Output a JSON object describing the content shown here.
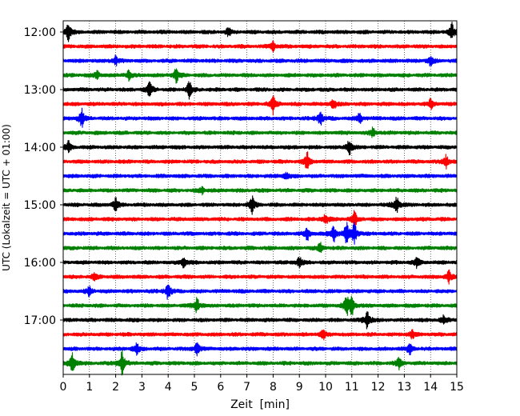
{
  "chart_data": {
    "type": "line",
    "title": "",
    "xlabel": "Zeit  [min]",
    "ylabel": "UTC (Lokalzeit = UTC + 01:00)",
    "xlim": [
      0,
      15
    ],
    "x_ticks": [
      "0",
      "1",
      "2",
      "3",
      "4",
      "5",
      "6",
      "7",
      "8",
      "9",
      "10",
      "11",
      "12",
      "13",
      "14",
      "15"
    ],
    "y_tick_labels": [
      "12:00",
      "13:00",
      "14:00",
      "15:00",
      "16:00",
      "17:00"
    ],
    "grid": "vertical dotted at each minute",
    "colors": [
      "#000000",
      "#ff0000",
      "#0000ff",
      "#008000"
    ],
    "series": [
      {
        "name": "12:00",
        "color": "#000000",
        "events": [
          {
            "t": 0.2,
            "amp": 1.0
          },
          {
            "t": 6.3,
            "amp": 0.5
          },
          {
            "t": 14.8,
            "amp": 1.0
          }
        ]
      },
      {
        "name": "12:15",
        "color": "#ff0000",
        "events": [
          {
            "t": 8.0,
            "amp": 0.5
          }
        ]
      },
      {
        "name": "12:30",
        "color": "#0000ff",
        "events": [
          {
            "t": 2.0,
            "amp": 0.5
          },
          {
            "t": 14.0,
            "amp": 0.5
          }
        ]
      },
      {
        "name": "12:45",
        "color": "#008000",
        "events": [
          {
            "t": 1.3,
            "amp": 0.4
          },
          {
            "t": 2.5,
            "amp": 0.6
          },
          {
            "t": 4.3,
            "amp": 0.8
          }
        ]
      },
      {
        "name": "13:00",
        "color": "#000000",
        "events": [
          {
            "t": 3.3,
            "amp": 1.0
          },
          {
            "t": 4.8,
            "amp": 0.9
          }
        ]
      },
      {
        "name": "13:15",
        "color": "#ff0000",
        "events": [
          {
            "t": 8.0,
            "amp": 1.0
          },
          {
            "t": 10.3,
            "amp": 0.6
          },
          {
            "t": 14.0,
            "amp": 0.5
          }
        ]
      },
      {
        "name": "13:30",
        "color": "#0000ff",
        "events": [
          {
            "t": 0.7,
            "amp": 1.0
          },
          {
            "t": 9.8,
            "amp": 0.9
          },
          {
            "t": 11.3,
            "amp": 0.6
          }
        ]
      },
      {
        "name": "13:45",
        "color": "#008000",
        "events": [
          {
            "t": 11.8,
            "amp": 0.5
          }
        ]
      },
      {
        "name": "14:00",
        "color": "#000000",
        "events": [
          {
            "t": 0.2,
            "amp": 0.6
          },
          {
            "t": 10.9,
            "amp": 0.9
          }
        ]
      },
      {
        "name": "14:15",
        "color": "#ff0000",
        "events": [
          {
            "t": 9.3,
            "amp": 1.0
          },
          {
            "t": 14.6,
            "amp": 0.7
          }
        ]
      },
      {
        "name": "14:30",
        "color": "#0000ff",
        "events": [
          {
            "t": 8.5,
            "amp": 0.4
          }
        ]
      },
      {
        "name": "14:45",
        "color": "#008000",
        "events": [
          {
            "t": 5.3,
            "amp": 0.4
          }
        ]
      },
      {
        "name": "15:00",
        "color": "#000000",
        "events": [
          {
            "t": 2.0,
            "amp": 0.7
          },
          {
            "t": 7.2,
            "amp": 0.9
          },
          {
            "t": 12.7,
            "amp": 1.0
          }
        ]
      },
      {
        "name": "15:15",
        "color": "#ff0000",
        "events": [
          {
            "t": 10.0,
            "amp": 0.6
          },
          {
            "t": 11.1,
            "amp": 0.9
          }
        ]
      },
      {
        "name": "15:30",
        "color": "#0000ff",
        "events": [
          {
            "t": 9.3,
            "amp": 0.7
          },
          {
            "t": 10.3,
            "amp": 1.0
          },
          {
            "t": 10.8,
            "amp": 1.3
          },
          {
            "t": 11.1,
            "amp": 1.1
          }
        ]
      },
      {
        "name": "15:45",
        "color": "#008000",
        "events": [
          {
            "t": 9.8,
            "amp": 0.6
          }
        ]
      },
      {
        "name": "16:00",
        "color": "#000000",
        "events": [
          {
            "t": 4.6,
            "amp": 0.7
          },
          {
            "t": 9.0,
            "amp": 0.6
          },
          {
            "t": 13.5,
            "amp": 0.6
          }
        ]
      },
      {
        "name": "16:15",
        "color": "#ff0000",
        "events": [
          {
            "t": 1.2,
            "amp": 0.5
          },
          {
            "t": 14.7,
            "amp": 0.7
          }
        ]
      },
      {
        "name": "16:30",
        "color": "#0000ff",
        "events": [
          {
            "t": 4.0,
            "amp": 1.0
          },
          {
            "t": 1.0,
            "amp": 0.5
          }
        ]
      },
      {
        "name": "16:45",
        "color": "#008000",
        "events": [
          {
            "t": 5.1,
            "amp": 0.8
          },
          {
            "t": 10.8,
            "amp": 1.0
          },
          {
            "t": 11.0,
            "amp": 1.0
          }
        ]
      },
      {
        "name": "17:00",
        "color": "#000000",
        "events": [
          {
            "t": 11.6,
            "amp": 1.0
          },
          {
            "t": 14.5,
            "amp": 0.5
          }
        ]
      },
      {
        "name": "17:15",
        "color": "#ff0000",
        "events": [
          {
            "t": 9.9,
            "amp": 0.5
          },
          {
            "t": 13.3,
            "amp": 0.4
          }
        ]
      },
      {
        "name": "17:30",
        "color": "#0000ff",
        "events": [
          {
            "t": 2.8,
            "amp": 0.6
          },
          {
            "t": 5.1,
            "amp": 0.7
          },
          {
            "t": 13.2,
            "amp": 0.6
          }
        ]
      },
      {
        "name": "17:45",
        "color": "#008000",
        "events": [
          {
            "t": 0.35,
            "amp": 1.2
          },
          {
            "t": 2.25,
            "amp": 1.3
          },
          {
            "t": 12.8,
            "amp": 0.6
          }
        ]
      }
    ]
  }
}
